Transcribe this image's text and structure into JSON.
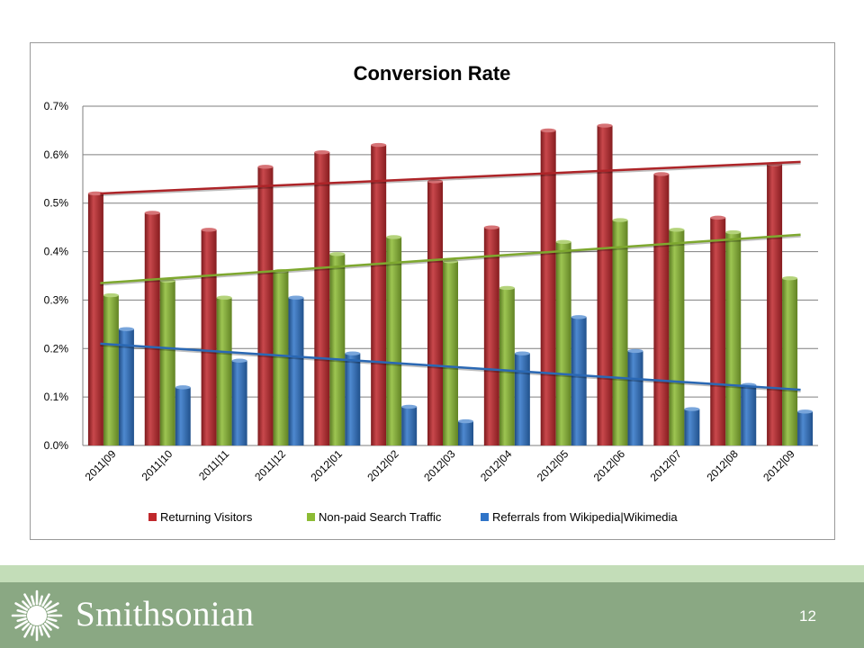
{
  "slide": {
    "brand": "Smithsonian",
    "page_number": "12"
  },
  "colors": {
    "returning": "#c0282c",
    "search": "#8cbb34",
    "referrals": "#2f74c8",
    "grid": "#7f7f7f",
    "footer": "#8aa883",
    "footer_light": "#c3ddb8"
  },
  "chart_data": {
    "type": "bar",
    "title": "Conversion Rate",
    "xlabel": "",
    "ylabel": "",
    "ylim": [
      0,
      0.7
    ],
    "y_ticks": [
      "0.0%",
      "0.1%",
      "0.2%",
      "0.3%",
      "0.4%",
      "0.5%",
      "0.6%",
      "0.7%"
    ],
    "y_tick_values": [
      0,
      0.1,
      0.2,
      0.3,
      0.4,
      0.5,
      0.6,
      0.7
    ],
    "grid": true,
    "legend_position": "bottom",
    "categories": [
      "2011|09",
      "2011|10",
      "2011|11",
      "2011|12",
      "2012|01",
      "2012|02",
      "2012|03",
      "2012|04",
      "2012|05",
      "2012|06",
      "2012|07",
      "2012|08",
      "2012|09"
    ],
    "series": [
      {
        "name": "Returning Visitors",
        "color": "#c0282c",
        "values": [
          0.52,
          0.48,
          0.445,
          0.575,
          0.605,
          0.62,
          0.545,
          0.45,
          0.65,
          0.66,
          0.56,
          0.47,
          0.58
        ],
        "trend": [
          0.52,
          0.585
        ]
      },
      {
        "name": "Non-paid Search Traffic",
        "color": "#8cbb34",
        "values": [
          0.31,
          0.34,
          0.305,
          0.36,
          0.395,
          0.43,
          0.38,
          0.325,
          0.42,
          0.465,
          0.445,
          0.44,
          0.345
        ],
        "trend": [
          0.335,
          0.435
        ]
      },
      {
        "name": "Referrals from Wikipedia|Wikimedia",
        "color": "#2f74c8",
        "values": [
          0.24,
          0.12,
          0.175,
          0.305,
          0.19,
          0.08,
          0.05,
          0.19,
          0.265,
          0.195,
          0.075,
          0.125,
          0.07
        ],
        "trend": [
          0.21,
          0.115
        ]
      }
    ]
  }
}
